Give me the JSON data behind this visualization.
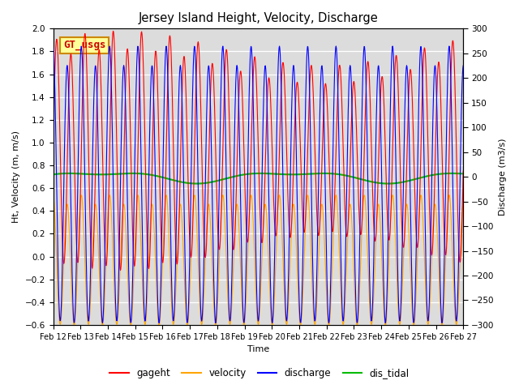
{
  "title": "Jersey Island Height, Velocity, Discharge",
  "xlabel": "Time",
  "ylabel_left": "Ht, Velocity (m, m/s)",
  "ylabel_right": "Discharge (m3/s)",
  "ylim_left": [
    -0.6,
    2.0
  ],
  "ylim_right": [
    -300,
    300
  ],
  "colors": {
    "gageht": "#FF0000",
    "velocity": "#FFA500",
    "discharge": "#0000FF",
    "dis_tidal": "#00BB00"
  },
  "legend_label": "GT_usgs",
  "legend_label_color": "#CC0000",
  "legend_box_color": "#FFFF99",
  "legend_box_edge": "#CC8800",
  "background_inner": "#DCDCDC",
  "grid_color": "#FFFFFF",
  "linewidth_main": 0.8,
  "linewidth_tidal": 1.5,
  "figwidth": 6.4,
  "figheight": 4.8,
  "dpi": 100
}
